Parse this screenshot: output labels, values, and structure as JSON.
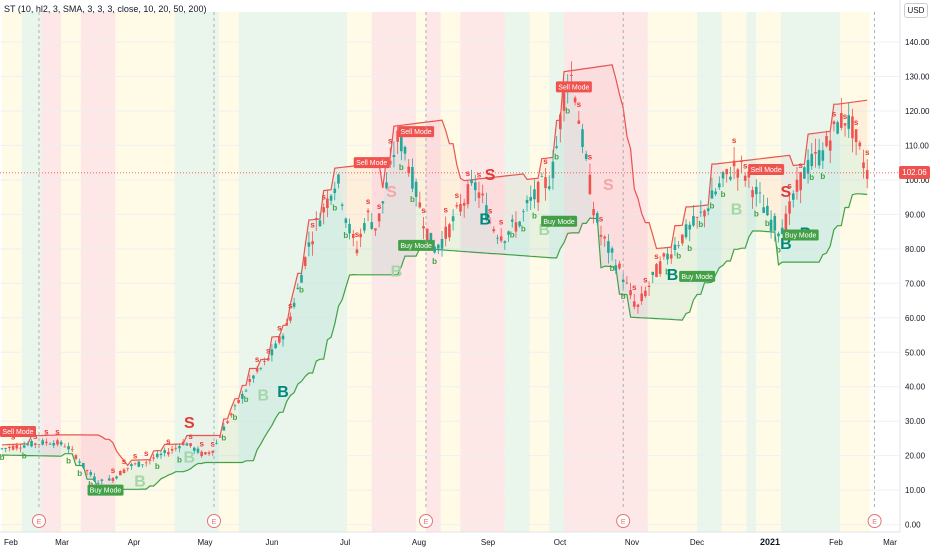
{
  "indicator_label": "ST (10, hl2, 3, SMA, 3, 3, 3, close, 10, 20, 50, 200)",
  "currency": "USD",
  "last_price": "102.06",
  "colors": {
    "bull": "#26a69a",
    "bear": "#ef5350",
    "support_line": "#43a047",
    "resistance_line": "#e53935",
    "band_green": "#e8f5e9",
    "band_red": "#fde4e4",
    "band_yellow": "#fffbe3",
    "earnings": "#e57373"
  },
  "chart_data": {
    "type": "candlestick",
    "y_axis": {
      "ticks": [
        "0.00",
        "10.00",
        "20.00",
        "30.00",
        "40.00",
        "50.00",
        "60.00",
        "70.00",
        "80.00",
        "90.00",
        "100.00",
        "110.00",
        "120.00",
        "130.00",
        "140.00"
      ],
      "ylim": [
        0,
        140
      ]
    },
    "x_axis": {
      "ticks": [
        "Feb",
        "Mar",
        "Apr",
        "May",
        "Jun",
        "Jul",
        "Aug",
        "Sep",
        "Oct",
        "Nov",
        "Dec",
        "2021",
        "Feb",
        "Mar"
      ]
    },
    "price_path": [
      [
        0,
        22
      ],
      [
        8,
        23
      ],
      [
        14,
        23.5
      ],
      [
        20,
        24
      ],
      [
        26,
        23
      ],
      [
        30,
        20
      ],
      [
        34,
        16
      ],
      [
        38,
        13
      ],
      [
        42,
        12
      ],
      [
        46,
        14
      ],
      [
        52,
        17
      ],
      [
        58,
        18
      ],
      [
        64,
        20
      ],
      [
        70,
        22
      ],
      [
        74,
        24
      ],
      [
        78,
        22
      ],
      [
        82,
        20
      ],
      [
        86,
        22
      ],
      [
        90,
        28
      ],
      [
        94,
        33
      ],
      [
        98,
        38
      ],
      [
        102,
        43
      ],
      [
        106,
        46
      ],
      [
        110,
        50
      ],
      [
        113,
        54
      ],
      [
        116,
        58
      ],
      [
        120,
        68
      ],
      [
        124,
        80
      ],
      [
        128,
        88
      ],
      [
        131,
        92
      ],
      [
        134,
        98
      ],
      [
        136,
        100
      ],
      [
        138,
        95
      ],
      [
        140,
        88
      ],
      [
        142,
        83
      ],
      [
        144,
        80
      ],
      [
        146,
        85
      ],
      [
        148,
        90
      ],
      [
        150,
        88
      ],
      [
        152,
        86
      ],
      [
        155,
        95
      ],
      [
        158,
        104
      ],
      [
        160,
        112
      ],
      [
        163,
        110
      ],
      [
        166,
        102
      ],
      [
        169,
        94
      ],
      [
        172,
        86
      ],
      [
        175,
        80
      ],
      [
        178,
        82
      ],
      [
        180,
        84
      ],
      [
        183,
        88
      ],
      [
        186,
        92
      ],
      [
        189,
        96
      ],
      [
        192,
        98
      ],
      [
        195,
        94
      ],
      [
        198,
        88
      ],
      [
        201,
        85
      ],
      [
        204,
        84
      ],
      [
        207,
        86
      ],
      [
        210,
        88
      ],
      [
        213,
        92
      ],
      [
        216,
        95
      ],
      [
        219,
        98
      ],
      [
        222,
        100
      ],
      [
        224,
        104
      ],
      [
        226,
        115
      ],
      [
        228,
        124
      ],
      [
        230,
        132
      ],
      [
        232,
        128
      ],
      [
        234,
        118
      ],
      [
        237,
        105
      ],
      [
        240,
        92
      ],
      [
        243,
        84
      ],
      [
        246,
        80
      ],
      [
        249,
        76
      ],
      [
        252,
        72
      ],
      [
        254,
        68
      ],
      [
        256,
        65
      ],
      [
        258,
        63
      ],
      [
        260,
        66
      ],
      [
        263,
        70
      ],
      [
        266,
        74
      ],
      [
        270,
        78
      ],
      [
        274,
        82
      ],
      [
        278,
        85
      ],
      [
        282,
        88
      ],
      [
        286,
        92
      ],
      [
        290,
        97
      ],
      [
        294,
        101
      ],
      [
        297,
        104
      ],
      [
        300,
        103
      ],
      [
        303,
        100
      ],
      [
        306,
        96
      ],
      [
        309,
        92
      ],
      [
        312,
        88
      ],
      [
        315,
        86
      ],
      [
        318,
        88
      ],
      [
        321,
        94
      ],
      [
        324,
        100
      ],
      [
        327,
        104
      ],
      [
        330,
        106
      ],
      [
        333,
        108
      ],
      [
        336,
        112
      ],
      [
        339,
        116
      ],
      [
        342,
        118
      ],
      [
        345,
        115
      ],
      [
        347,
        110
      ],
      [
        350,
        104
      ],
      [
        352,
        100
      ]
    ],
    "sell_mode_labels": [
      {
        "date": 0,
        "price": 27,
        "text": "Sell Mode"
      },
      {
        "date": 150,
        "price": 105,
        "text": "Sell Mode"
      },
      {
        "date": 168,
        "price": 114,
        "text": "Sell Mode"
      },
      {
        "date": 232,
        "price": 127,
        "text": "Sell Mode"
      },
      {
        "date": 310,
        "price": 103,
        "text": "Sell Mode"
      }
    ],
    "buy_mode_labels": [
      {
        "date": 42,
        "price": 10,
        "text": "Buy Mode"
      },
      {
        "date": 168,
        "price": 81,
        "text": "Buy Mode"
      },
      {
        "date": 226,
        "price": 88,
        "text": "Buy Mode"
      },
      {
        "date": 282,
        "price": 72,
        "text": "Buy Mode"
      },
      {
        "date": 324,
        "price": 84,
        "text": "Buy Mode"
      }
    ],
    "big_signals": [
      {
        "date": 76,
        "price": 28,
        "text": "S",
        "kind": "sell"
      },
      {
        "date": 76,
        "price": 18,
        "text": "B",
        "kind": "buy-faded"
      },
      {
        "date": 56,
        "price": 11,
        "text": "B",
        "kind": "buy-faded"
      },
      {
        "date": 106,
        "price": 36,
        "text": "B",
        "kind": "buy-faded"
      },
      {
        "date": 114,
        "price": 37,
        "text": "B",
        "kind": "buy"
      },
      {
        "date": 158,
        "price": 95,
        "text": "S",
        "kind": "sell-faded"
      },
      {
        "date": 160,
        "price": 72,
        "text": "B",
        "kind": "buy-faded"
      },
      {
        "date": 198,
        "price": 100,
        "text": "S",
        "kind": "sell"
      },
      {
        "date": 196,
        "price": 87,
        "text": "B",
        "kind": "buy"
      },
      {
        "date": 220,
        "price": 84,
        "text": "B",
        "kind": "buy-faded"
      },
      {
        "date": 246,
        "price": 97,
        "text": "S",
        "kind": "sell-faded"
      },
      {
        "date": 272,
        "price": 71,
        "text": "B",
        "kind": "buy"
      },
      {
        "date": 298,
        "price": 90,
        "text": "B",
        "kind": "buy-faded"
      },
      {
        "date": 318,
        "price": 95,
        "text": "S",
        "kind": "sell"
      },
      {
        "date": 318,
        "price": 80,
        "text": "B",
        "kind": "buy"
      },
      {
        "date": 326,
        "price": 83,
        "text": "B",
        "kind": "buy"
      }
    ],
    "earnings_markers": [
      "E",
      "E",
      "E",
      "E",
      "E"
    ]
  }
}
